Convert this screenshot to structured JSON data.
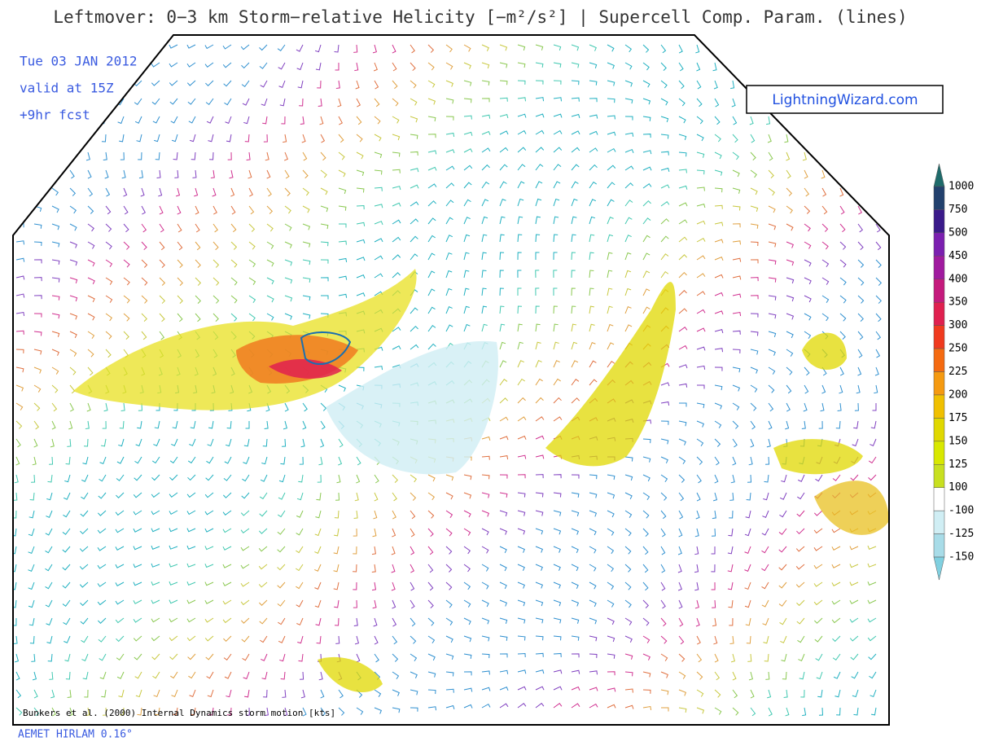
{
  "header": {
    "title": "Leftmover: 0−3 km Storm−relative Helicity [−m²/s²] | Supercell Comp. Param. (lines)"
  },
  "info": [
    "Tue 03 JAN 2012",
    "valid at 15Z",
    "+9hr fcst"
  ],
  "logo": "LightningWizard.com",
  "legend": {
    "levels": [
      1000,
      750,
      500,
      450,
      400,
      350,
      300,
      250,
      225,
      200,
      175,
      150,
      125,
      100,
      -100,
      -125,
      -150
    ],
    "colors": [
      "#1f6b6b",
      "#22416e",
      "#3a1a8a",
      "#7b1fb0",
      "#a01a9f",
      "#c51a7d",
      "#e0204f",
      "#f03a1e",
      "#f56a10",
      "#f59a10",
      "#f0c000",
      "#e0d800",
      "#d8e800",
      "#c8e020",
      "#ffffff",
      "#d0eef4",
      "#a8dce8",
      "#80d0e0"
    ]
  },
  "footer": {
    "note": "Bunkers et al. (2000) Internal Dynamics storm motion [kts]",
    "model": "AEMET HIRLAM 0.16°"
  }
}
